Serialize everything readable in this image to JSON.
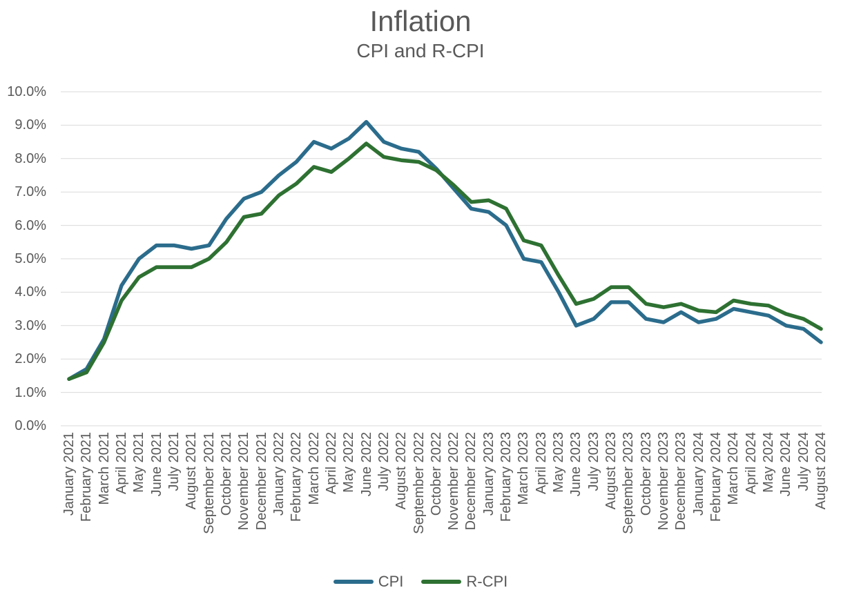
{
  "header": {
    "title": "Inflation",
    "subtitle": "CPI and R-CPI"
  },
  "colors": {
    "cpi_line": "#2B6C8C",
    "rcpi_line": "#2E7132",
    "grid": "#D9D9D9",
    "text": "#595959",
    "background": "#FFFFFF"
  },
  "legend": {
    "position": "bottom",
    "entries": [
      "CPI",
      "R-CPI"
    ]
  },
  "chart_data": {
    "type": "line",
    "title": "Inflation",
    "subtitle": "CPI and R-CPI",
    "grid": "horizontal",
    "legend_position": "bottom",
    "y_axis": {
      "min": 0,
      "max": 10,
      "tick_step": 1,
      "format": "percent_one_decimal",
      "tick_labels_top_to_bottom": [
        "10.0%",
        "9.0%",
        "8.0%",
        "7.0%",
        "6.0%",
        "5.0%",
        "4.0%",
        "3.0%",
        "2.0%",
        "1.0%",
        "0.0%"
      ]
    },
    "categories": [
      "January 2021",
      "February 2021",
      "March 2021",
      "April 2021",
      "May 2021",
      "June 2021",
      "July 2021",
      "August 2021",
      "September 2021",
      "October 2021",
      "November 2021",
      "December 2021",
      "January 2022",
      "February 2022",
      "March 2022",
      "April 2022",
      "May 2022",
      "June 2022",
      "July 2022",
      "August 2022",
      "September 2022",
      "October 2022",
      "November 2022",
      "December 2022",
      "January 2023",
      "February 2023",
      "March 2023",
      "April 2023",
      "May 2023",
      "June 2023",
      "July 2023",
      "August 2023",
      "September 2023",
      "October 2023",
      "November 2023",
      "December 2023",
      "January 2024",
      "February 2024",
      "March 2024",
      "April 2024",
      "May 2024",
      "June 2024",
      "July 2024",
      "August 2024"
    ],
    "series": [
      {
        "name": "CPI",
        "color": "#2B6C8C",
        "values": [
          1.4,
          1.7,
          2.6,
          4.2,
          5.0,
          5.4,
          5.4,
          5.3,
          5.4,
          6.2,
          6.8,
          7.0,
          7.5,
          7.9,
          8.5,
          8.3,
          8.6,
          9.1,
          8.5,
          8.3,
          8.2,
          7.7,
          7.1,
          6.5,
          6.4,
          6.0,
          5.0,
          4.9,
          4.0,
          3.0,
          3.2,
          3.7,
          3.7,
          3.2,
          3.1,
          3.4,
          3.1,
          3.2,
          3.5,
          3.4,
          3.3,
          3.0,
          2.9,
          2.5
        ]
      },
      {
        "name": "R-CPI",
        "color": "#2E7132",
        "values": [
          1.4,
          1.6,
          2.5,
          3.75,
          4.45,
          4.75,
          4.75,
          4.75,
          5.0,
          5.5,
          6.25,
          6.35,
          6.9,
          7.25,
          7.75,
          7.6,
          8.0,
          8.45,
          8.05,
          7.95,
          7.9,
          7.65,
          7.2,
          6.7,
          6.75,
          6.5,
          5.55,
          5.4,
          4.5,
          3.65,
          3.8,
          4.15,
          4.15,
          3.65,
          3.55,
          3.65,
          3.45,
          3.4,
          3.75,
          3.65,
          3.6,
          3.35,
          3.2,
          2.9
        ]
      }
    ]
  }
}
